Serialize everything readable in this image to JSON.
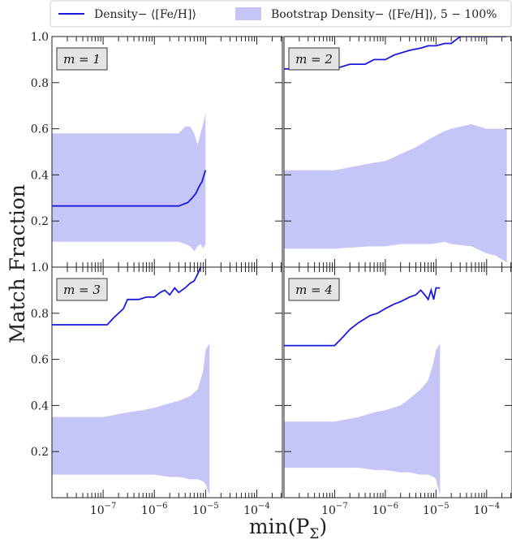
{
  "figure": {
    "ylabel": "Match Fraction",
    "xlabel_main": "min(P",
    "xlabel_sub": "Σ",
    "xlabel_close": ")"
  },
  "legend": {
    "entries": [
      {
        "label": "Density− ⟨[Fe/H]⟩",
        "kind": "line",
        "color": "#1a1adc"
      },
      {
        "label": "Bootstrap Density− ⟨[Fe/H]⟩, 5 − 100%",
        "kind": "band",
        "color": "#c5c5f7"
      }
    ]
  },
  "chart_data": [
    {
      "type": "line",
      "panel_label": "m = 1",
      "xscale": "log",
      "ylim": [
        0.0,
        1.0
      ],
      "xlim_log10": [
        -8.0,
        -3.5
      ],
      "line_color": "#1a1adc",
      "band_color": "#c5c5f7",
      "line": {
        "x": [
          1e-08,
          3e-06,
          4.5e-06,
          5.5e-06,
          6.5e-06,
          7.5e-06,
          8.5e-06,
          1e-05
        ],
        "y": [
          0.265,
          0.265,
          0.28,
          0.3,
          0.32,
          0.35,
          0.37,
          0.42
        ]
      },
      "band": {
        "x": [
          1e-08,
          1e-07,
          1e-06,
          3e-06,
          4e-06,
          5e-06,
          6e-06,
          7e-06,
          8e-06,
          9e-06,
          1e-05
        ],
        "upper": [
          0.58,
          0.58,
          0.58,
          0.58,
          0.61,
          0.61,
          0.58,
          0.53,
          0.58,
          0.62,
          0.67
        ],
        "lower": [
          0.11,
          0.11,
          0.11,
          0.11,
          0.1,
          0.09,
          0.07,
          0.09,
          0.1,
          0.08,
          0.1
        ]
      }
    },
    {
      "type": "line",
      "panel_label": "m = 2",
      "xscale": "log",
      "ylim": [
        0.0,
        1.0
      ],
      "xlim_log10": [
        -8.0,
        -3.5
      ],
      "line_color": "#1a1adc",
      "band_color": "#c5c5f7",
      "line": {
        "x": [
          1e-08,
          1e-07,
          2e-07,
          4e-07,
          6e-07,
          1e-06,
          1.5e-06,
          3e-06,
          5e-06,
          7e-06,
          1e-05,
          1.5e-05,
          2e-05,
          3e-05,
          0.0001,
          0.00025
        ],
        "y": [
          0.86,
          0.86,
          0.88,
          0.88,
          0.9,
          0.9,
          0.92,
          0.94,
          0.95,
          0.96,
          0.96,
          0.97,
          0.97,
          1.0,
          1.0,
          1.0
        ]
      },
      "band": {
        "x": [
          1e-08,
          1e-07,
          5e-07,
          1e-06,
          2e-06,
          4e-06,
          8e-06,
          1.5e-05,
          2e-05,
          5e-05,
          0.0001,
          0.00015,
          0.00025
        ],
        "upper": [
          0.42,
          0.42,
          0.45,
          0.46,
          0.49,
          0.52,
          0.56,
          0.59,
          0.6,
          0.62,
          0.6,
          0.6,
          0.6
        ],
        "lower": [
          0.08,
          0.08,
          0.09,
          0.09,
          0.1,
          0.1,
          0.1,
          0.11,
          0.1,
          0.09,
          0.06,
          0.05,
          0.02
        ]
      }
    },
    {
      "type": "line",
      "panel_label": "m = 3",
      "xscale": "log",
      "ylim": [
        0.0,
        1.0
      ],
      "xlim_log10": [
        -8.0,
        -3.5
      ],
      "line_color": "#1a1adc",
      "band_color": "#c5c5f7",
      "line": {
        "x": [
          1e-08,
          1.2e-07,
          1.6e-07,
          2.5e-07,
          3e-07,
          5e-07,
          7e-07,
          1e-06,
          1.3e-06,
          1.6e-06,
          2e-06,
          2.5e-06,
          3e-06,
          4e-06,
          5e-06,
          6e-06,
          7e-06,
          8e-06
        ],
        "y": [
          0.75,
          0.75,
          0.78,
          0.82,
          0.86,
          0.86,
          0.87,
          0.87,
          0.89,
          0.9,
          0.88,
          0.91,
          0.89,
          0.91,
          0.93,
          0.94,
          0.97,
          1.0
        ]
      },
      "band": {
        "x": [
          1e-08,
          1e-07,
          3e-07,
          6e-07,
          1e-06,
          2e-06,
          3e-06,
          5e-06,
          7e-06,
          9e-06,
          1e-05,
          1.2e-05
        ],
        "upper": [
          0.35,
          0.35,
          0.37,
          0.38,
          0.39,
          0.41,
          0.42,
          0.44,
          0.47,
          0.55,
          0.64,
          0.67
        ],
        "lower": [
          0.1,
          0.1,
          0.1,
          0.1,
          0.1,
          0.09,
          0.09,
          0.08,
          0.08,
          0.07,
          0.06,
          0.01
        ]
      }
    },
    {
      "type": "line",
      "panel_label": "m = 4",
      "xscale": "log",
      "ylim": [
        0.0,
        1.0
      ],
      "xlim_log10": [
        -8.0,
        -3.5
      ],
      "line_color": "#1a1adc",
      "band_color": "#c5c5f7",
      "line": {
        "x": [
          1e-08,
          1e-07,
          1.5e-07,
          2e-07,
          3e-07,
          5e-07,
          7e-07,
          1e-06,
          1.5e-06,
          2e-06,
          3e-06,
          4e-06,
          5e-06,
          6e-06,
          7e-06,
          8e-06,
          9e-06,
          1e-05,
          1.2e-05
        ],
        "y": [
          0.66,
          0.66,
          0.7,
          0.73,
          0.76,
          0.79,
          0.8,
          0.82,
          0.84,
          0.85,
          0.87,
          0.88,
          0.9,
          0.88,
          0.86,
          0.9,
          0.86,
          0.91,
          0.91
        ]
      },
      "band": {
        "x": [
          1e-08,
          1e-07,
          3e-07,
          6e-07,
          1e-06,
          2e-06,
          3e-06,
          5e-06,
          7e-06,
          9e-06,
          1e-05,
          1.2e-05
        ],
        "upper": [
          0.33,
          0.33,
          0.35,
          0.37,
          0.38,
          0.4,
          0.43,
          0.47,
          0.51,
          0.59,
          0.64,
          0.67
        ],
        "lower": [
          0.13,
          0.13,
          0.13,
          0.12,
          0.12,
          0.11,
          0.11,
          0.1,
          0.1,
          0.09,
          0.08,
          0.01
        ]
      }
    }
  ],
  "axes": {
    "yticks": [
      0.2,
      0.4,
      0.6,
      0.8,
      1.0
    ],
    "ytick_labels": [
      "0.2",
      "0.4",
      "0.6",
      "0.8",
      "1.0"
    ],
    "xticks_log10": [
      -7,
      -6,
      -5,
      -4
    ],
    "xtick_labels_left": [
      {
        "base": "10",
        "exp": "−7"
      },
      {
        "base": "10",
        "exp": "−6"
      },
      {
        "base": "10",
        "exp": "−5"
      },
      {
        "base": "10",
        "exp": "−4"
      }
    ],
    "xtick_labels_right": [
      {
        "base": "10",
        "exp": "−7"
      },
      {
        "base": "10",
        "exp": "−6"
      },
      {
        "base": "10",
        "exp": "−5"
      },
      {
        "base": "10",
        "exp": "−4"
      }
    ]
  }
}
